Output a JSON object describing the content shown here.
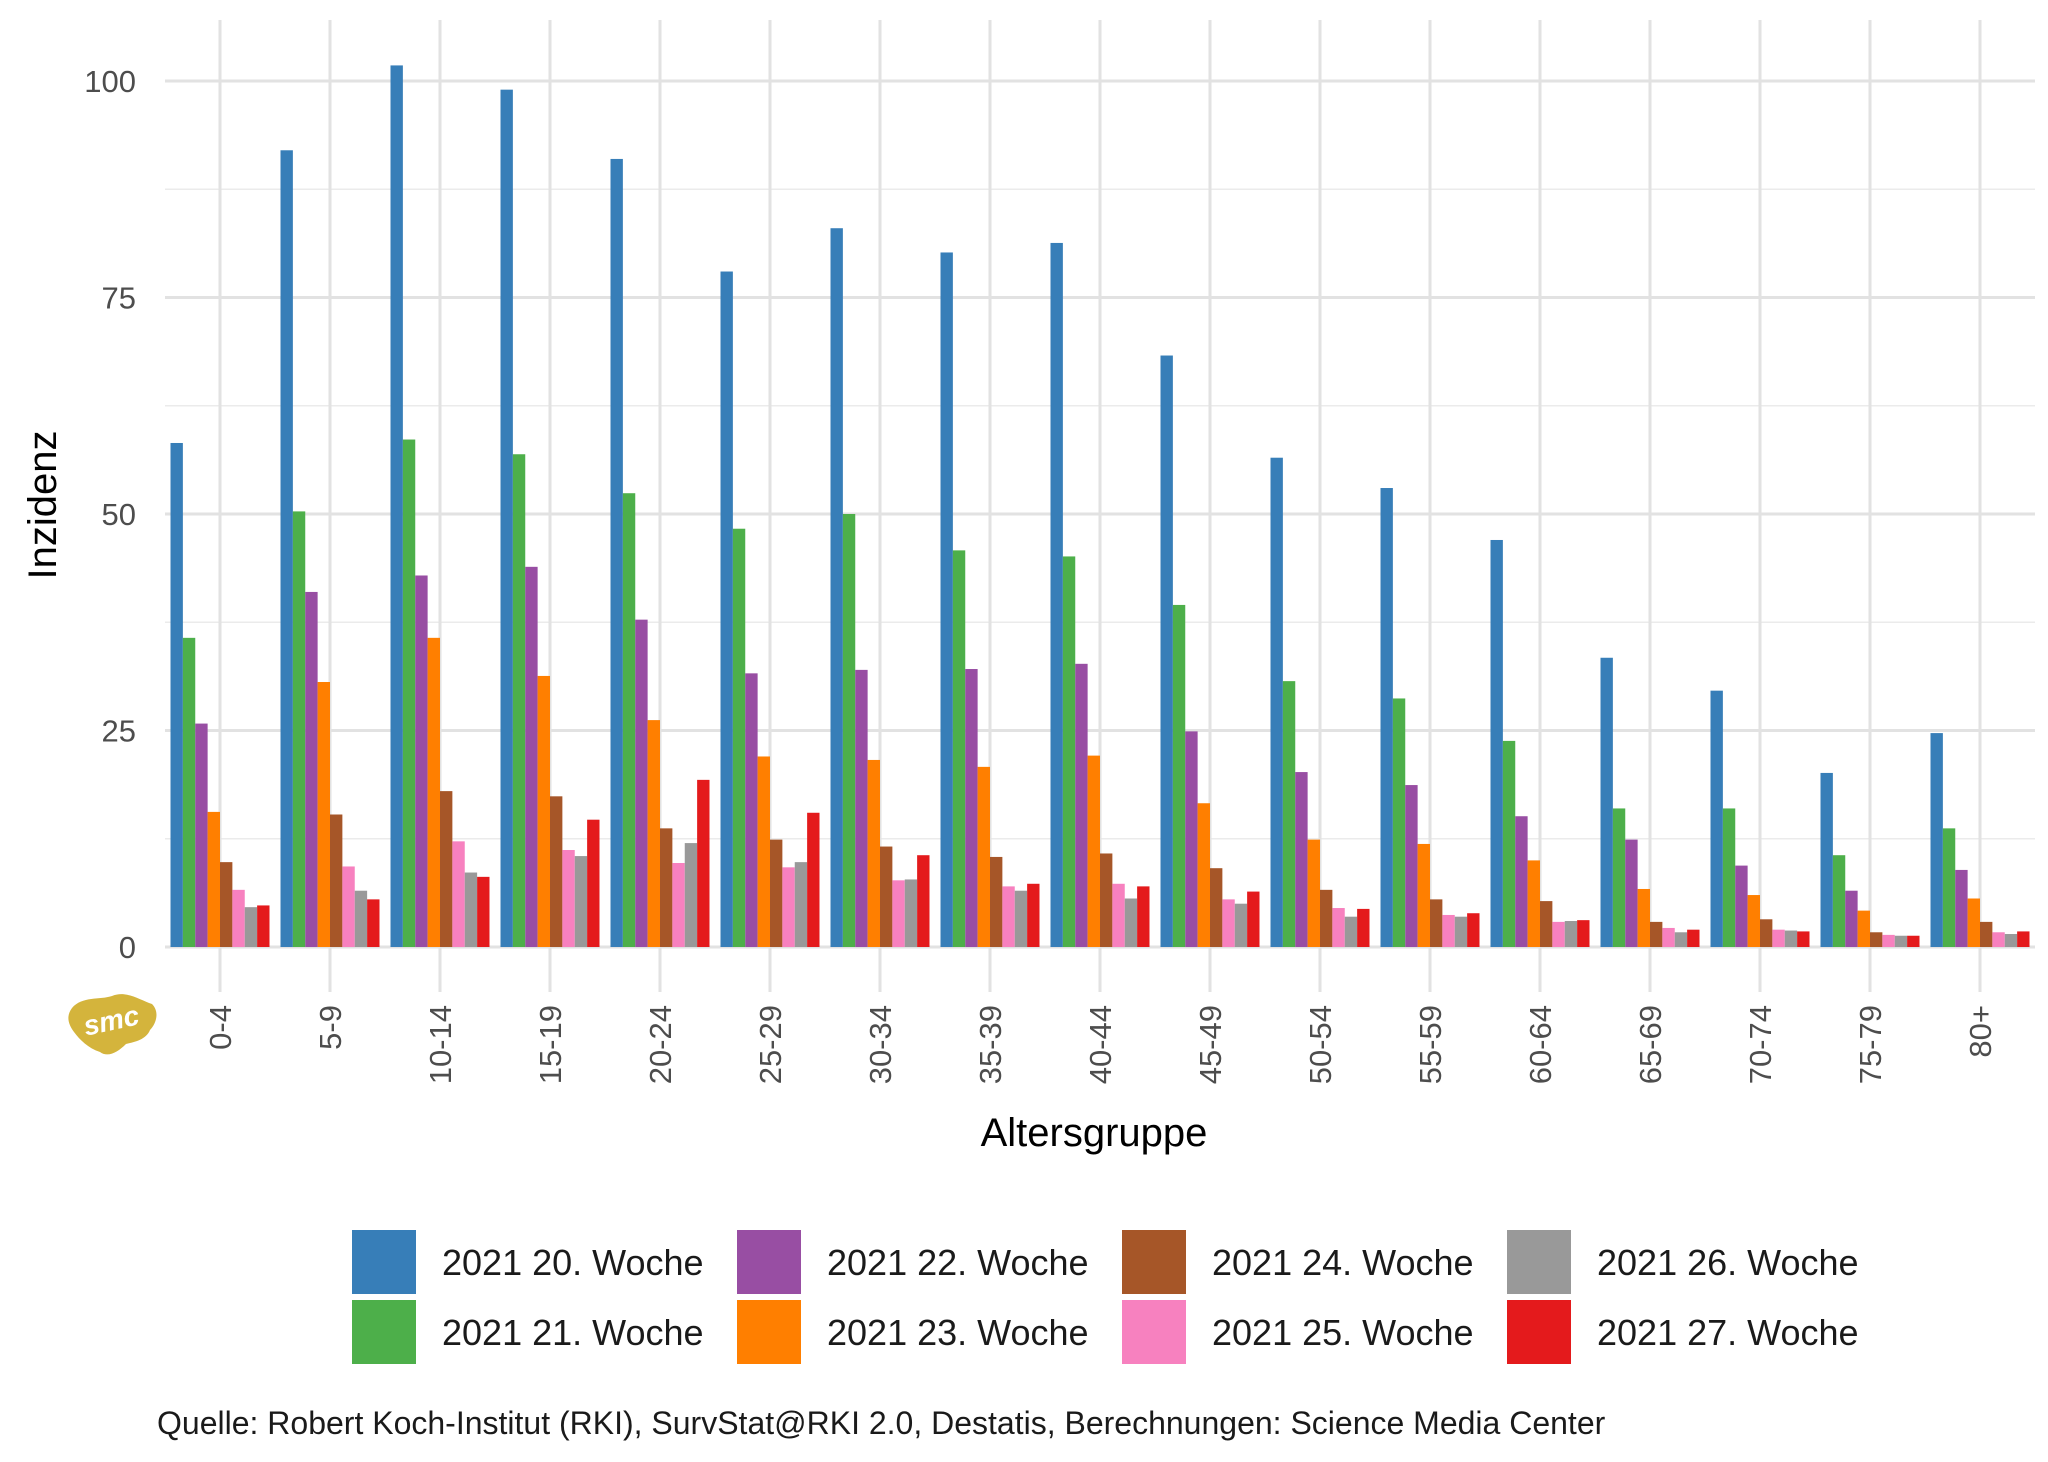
{
  "chart_data": {
    "type": "bar",
    "xlabel": "Altersgruppe",
    "ylabel": "Inzidenz",
    "ylim": [
      0,
      104
    ],
    "yticks": [
      0,
      25,
      50,
      75,
      100
    ],
    "grid": true,
    "legend_position": "bottom",
    "categories": [
      "0-4",
      "5-9",
      "10-14",
      "15-19",
      "20-24",
      "25-29",
      "30-34",
      "35-39",
      "40-44",
      "45-49",
      "50-54",
      "55-59",
      "60-64",
      "65-69",
      "70-74",
      "75-79",
      "80+"
    ],
    "series": [
      {
        "name": "2021 20. Woche",
        "color": "#377eb8",
        "values": [
          58.2,
          92.0,
          101.8,
          99.0,
          91.0,
          78.0,
          83.0,
          80.2,
          81.3,
          68.3,
          56.5,
          53.0,
          47.0,
          33.4,
          29.6,
          20.1,
          24.7
        ]
      },
      {
        "name": "2021 21. Woche",
        "color": "#4daf4a",
        "values": [
          35.7,
          50.3,
          58.6,
          56.9,
          52.4,
          48.3,
          50.0,
          45.8,
          45.1,
          39.5,
          30.7,
          28.7,
          23.8,
          16.0,
          16.0,
          10.6,
          13.7
        ]
      },
      {
        "name": "2021 22. Woche",
        "color": "#984ea3",
        "values": [
          25.8,
          41.0,
          42.9,
          43.9,
          37.8,
          31.6,
          32.0,
          32.1,
          32.7,
          24.9,
          20.2,
          18.7,
          15.1,
          12.4,
          9.4,
          6.5,
          8.9
        ]
      },
      {
        "name": "2021 23. Woche",
        "color": "#ff7f00",
        "values": [
          15.6,
          30.6,
          35.7,
          31.3,
          26.2,
          22.0,
          21.6,
          20.8,
          22.1,
          16.6,
          12.4,
          11.9,
          10.0,
          6.7,
          6.0,
          4.2,
          5.6
        ]
      },
      {
        "name": "2021 24. Woche",
        "color": "#a65628",
        "values": [
          9.8,
          15.3,
          18.0,
          17.4,
          13.7,
          12.4,
          11.6,
          10.4,
          10.8,
          9.1,
          6.6,
          5.5,
          5.3,
          2.9,
          3.2,
          1.7,
          2.9
        ]
      },
      {
        "name": "2021 25. Woche",
        "color": "#f781bf",
        "values": [
          6.6,
          9.3,
          12.2,
          11.2,
          9.7,
          9.2,
          7.7,
          7.0,
          7.3,
          5.5,
          4.5,
          3.7,
          2.9,
          2.2,
          2.0,
          1.4,
          1.7
        ]
      },
      {
        "name": "2021 26. Woche",
        "color": "#999999",
        "values": [
          4.6,
          6.5,
          8.6,
          10.5,
          12.0,
          9.8,
          7.8,
          6.5,
          5.6,
          5.0,
          3.5,
          3.5,
          3.0,
          1.7,
          1.9,
          1.3,
          1.5
        ]
      },
      {
        "name": "2021 27. Woche",
        "color": "#e41a1c",
        "values": [
          4.8,
          5.5,
          8.1,
          14.7,
          19.3,
          15.5,
          10.6,
          7.3,
          7.0,
          6.4,
          4.4,
          3.9,
          3.1,
          2.0,
          1.8,
          1.3,
          1.8
        ]
      }
    ]
  },
  "source_note": "Quelle: Robert Koch-Institut (RKI), SurvStat@RKI 2.0, Destatis, Berechnungen: Science Media Center",
  "logo": {
    "text": "smc",
    "color": "#d4b43c"
  }
}
